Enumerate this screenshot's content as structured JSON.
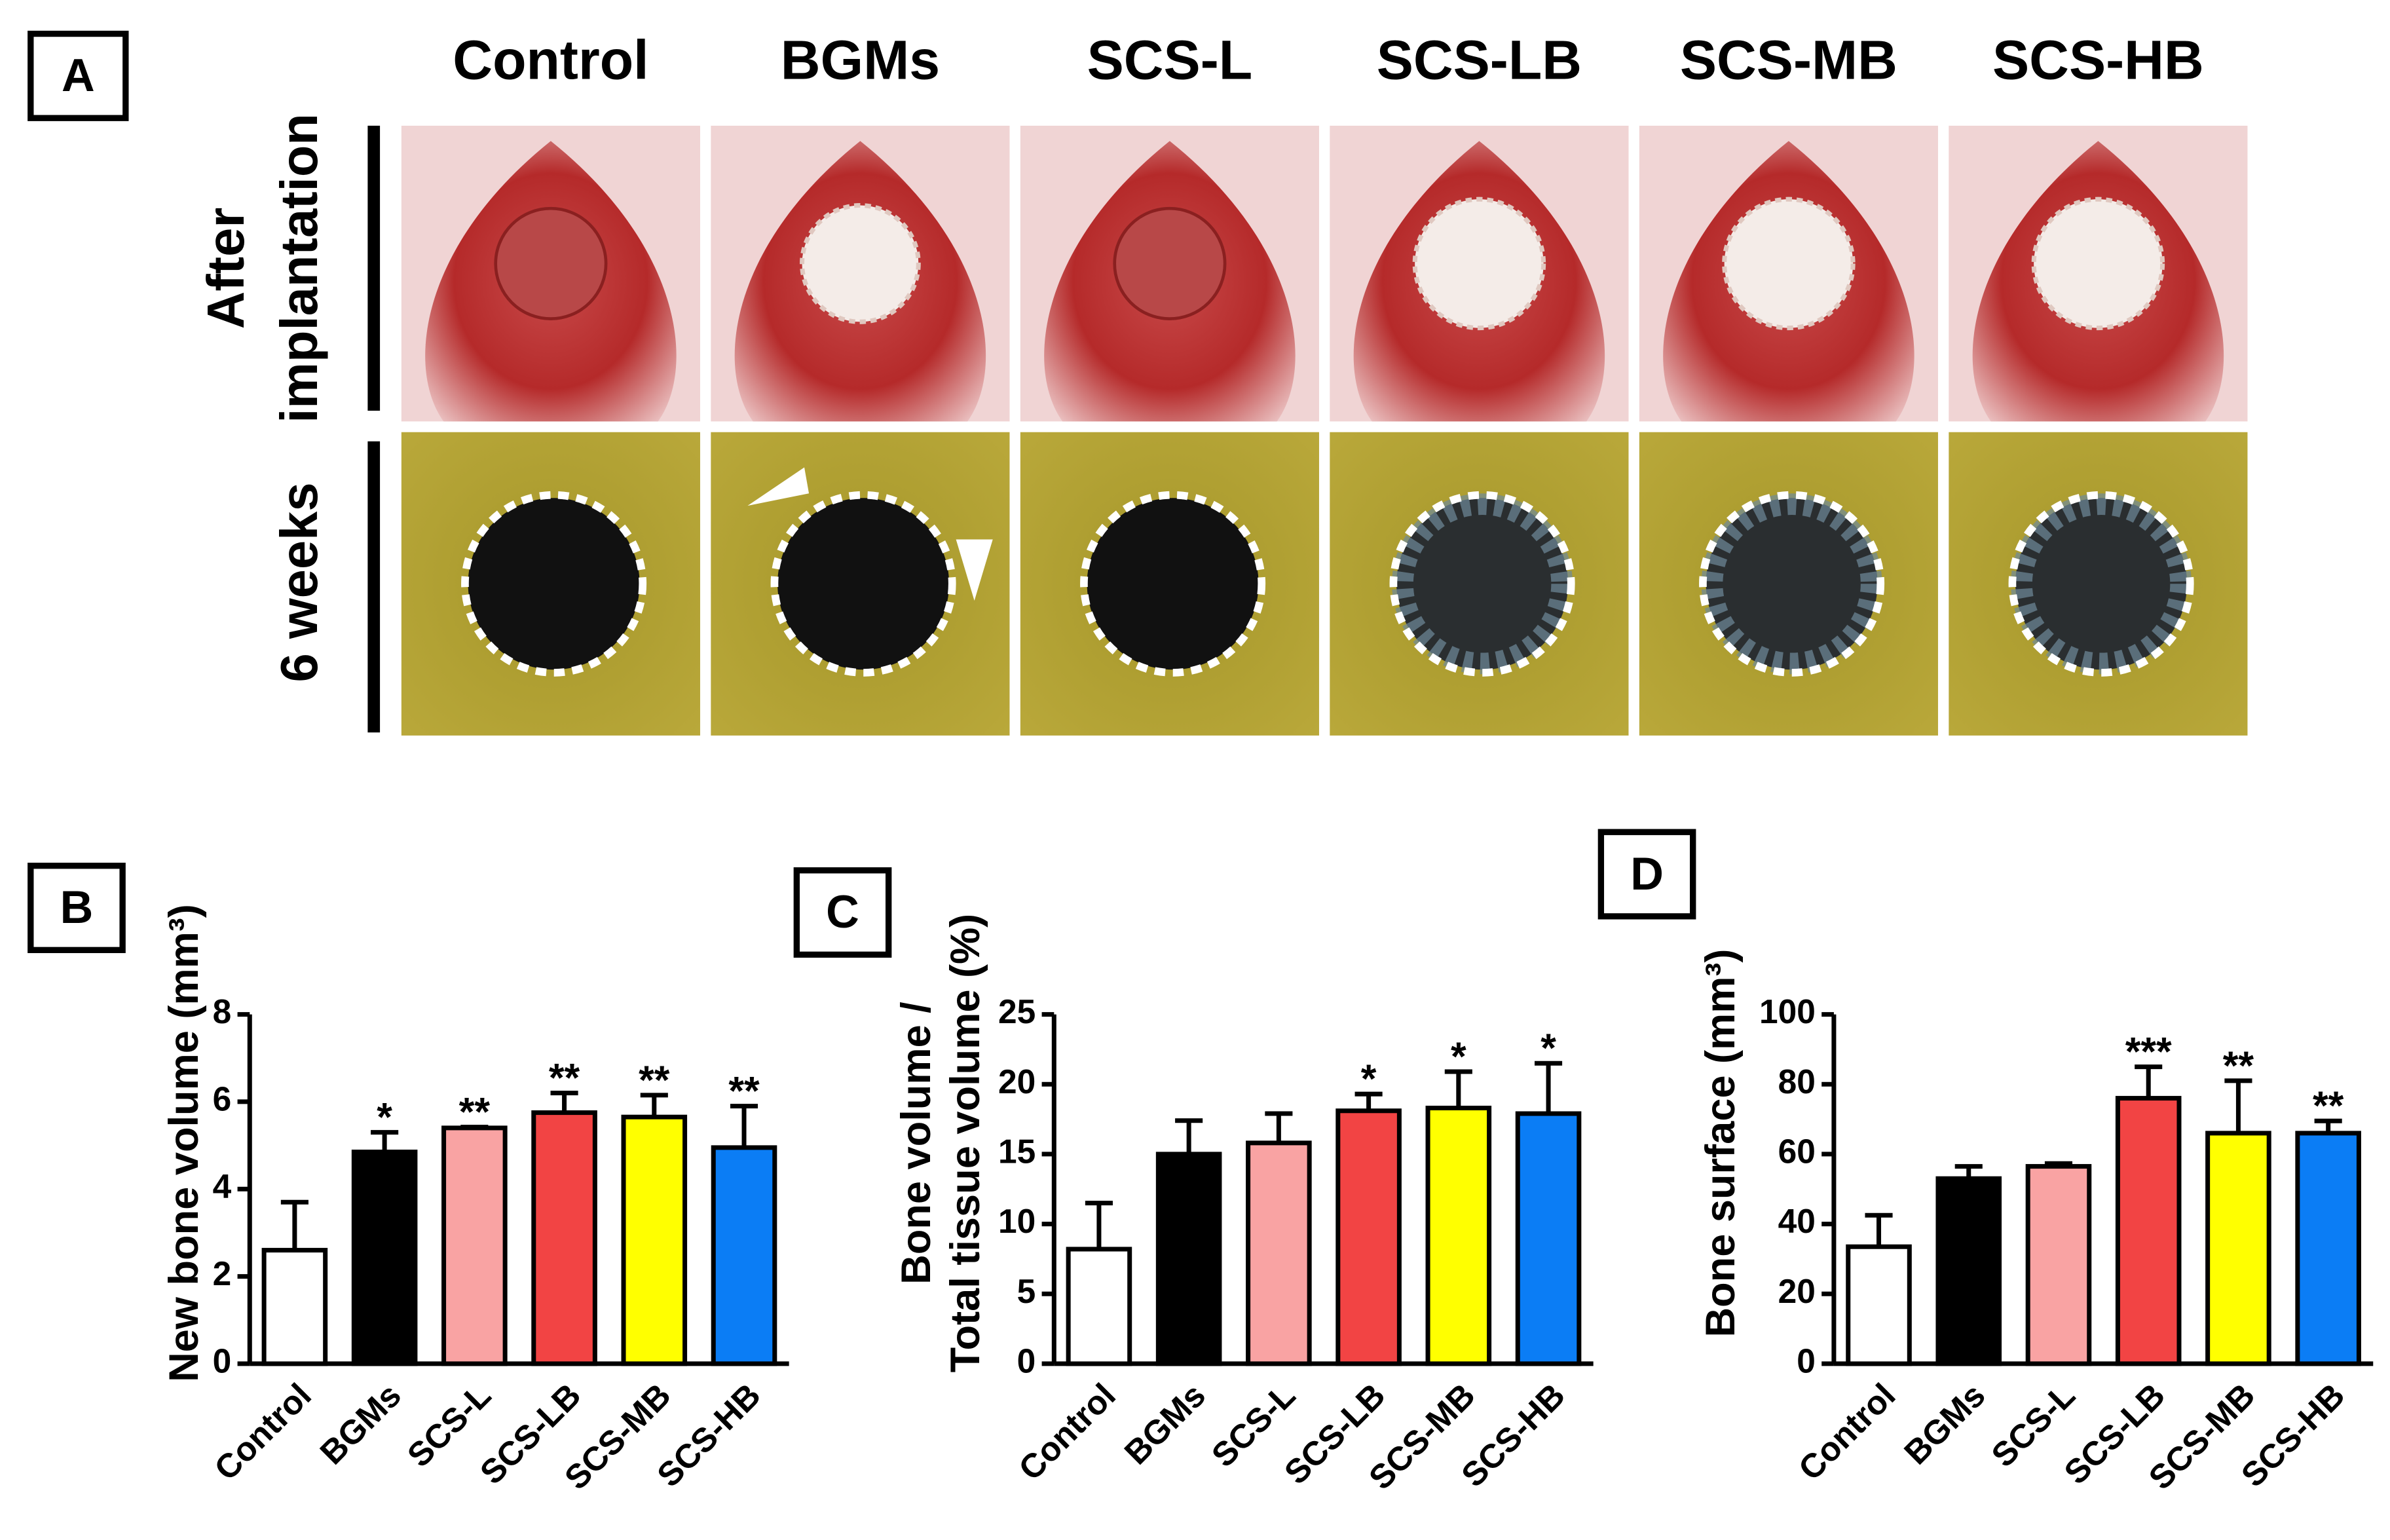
{
  "panel_a": {
    "label": "A",
    "columns": [
      "Control",
      "BGMs",
      "SCS-L",
      "SCS-LB",
      "SCS-MB",
      "SCS-HB"
    ],
    "rows": [
      [
        "After",
        "implantation"
      ],
      [
        "6 weeks"
      ]
    ]
  },
  "chart_data": [
    {
      "type": "bar",
      "panel_label": "B",
      "ylabel": [
        "New bone volume (mm³)"
      ],
      "categories": [
        "Control",
        "BGMs",
        "SCS-L",
        "SCS-LB",
        "SCS-MB",
        "SCS-HB"
      ],
      "values": [
        2.6,
        4.85,
        5.4,
        5.75,
        5.65,
        4.95
      ],
      "errors": [
        1.1,
        0.45,
        0.02,
        0.45,
        0.5,
        0.95
      ],
      "annotations": [
        null,
        "*",
        "**",
        "**",
        "**",
        "**"
      ],
      "colors": [
        "#ffffff",
        "#000000",
        "#f9a3a3",
        "#f24444",
        "#ffff00",
        "#0b7df5"
      ],
      "ylim": [
        0,
        8
      ],
      "yticks": [
        0,
        2,
        4,
        6,
        8
      ]
    },
    {
      "type": "bar",
      "panel_label": "C",
      "ylabel": [
        "Bone volume /",
        "Total tissue volume (%)"
      ],
      "categories": [
        "Control",
        "BGMs",
        "SCS-L",
        "SCS-LB",
        "SCS-MB",
        "SCS-HB"
      ],
      "values": [
        8.2,
        15,
        15.8,
        18.1,
        18.3,
        17.9
      ],
      "errors": [
        3.3,
        2.4,
        2.1,
        1.2,
        2.6,
        3.6
      ],
      "annotations": [
        null,
        null,
        null,
        "*",
        "*",
        "*"
      ],
      "colors": [
        "#ffffff",
        "#000000",
        "#f9a3a3",
        "#f24444",
        "#ffff00",
        "#0b7df5"
      ],
      "ylim": [
        0,
        25
      ],
      "yticks": [
        0,
        5,
        10,
        15,
        20,
        25
      ]
    },
    {
      "type": "bar",
      "panel_label": "D",
      "ylabel": [
        "Bone surface (mm³)"
      ],
      "categories": [
        "Control",
        "BGMs",
        "SCS-L",
        "SCS-LB",
        "SCS-MB",
        "SCS-HB"
      ],
      "values": [
        33.5,
        53,
        56.5,
        76,
        66,
        66
      ],
      "errors": [
        9,
        3.5,
        0.8,
        9,
        15,
        3.5
      ],
      "annotations": [
        null,
        null,
        null,
        "***",
        "**",
        "**"
      ],
      "colors": [
        "#ffffff",
        "#000000",
        "#f9a3a3",
        "#f24444",
        "#ffff00",
        "#0b7df5"
      ],
      "ylim": [
        0,
        100
      ],
      "yticks": [
        0,
        20,
        40,
        60,
        80,
        100
      ]
    }
  ]
}
